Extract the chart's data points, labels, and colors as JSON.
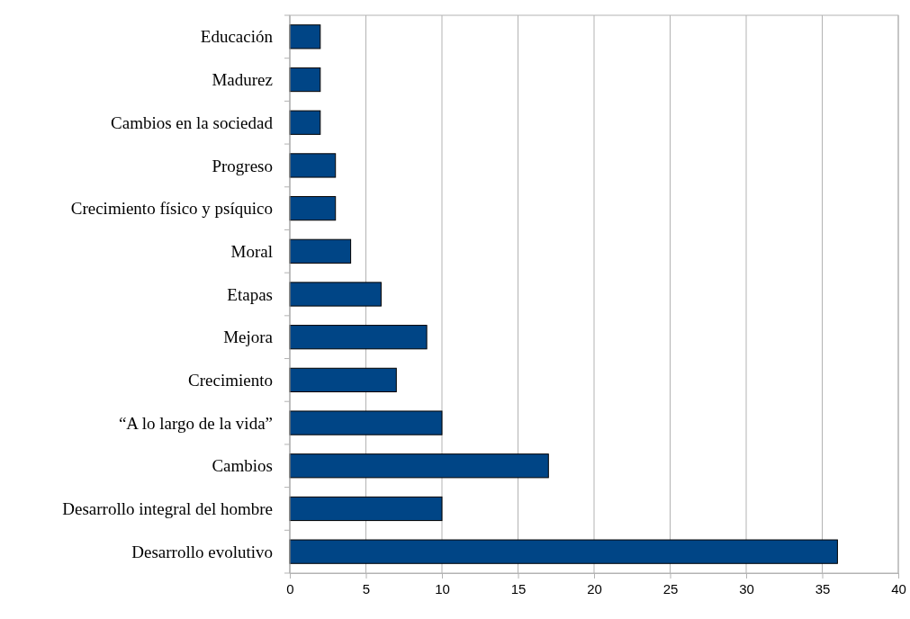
{
  "chart_data": {
    "type": "bar",
    "orientation": "horizontal",
    "categories": [
      "Educación",
      "Madurez",
      "Cambios en la sociedad",
      "Progreso",
      "Crecimiento físico y psíquico",
      "Moral",
      "Etapas",
      "Mejora",
      "Crecimiento",
      "“A lo largo de la vida”",
      "Cambios",
      "Desarrollo integral del hombre",
      "Desarrollo evolutivo"
    ],
    "values": [
      2,
      2,
      2,
      3,
      3,
      4,
      6,
      9,
      7,
      10,
      17,
      10,
      36
    ],
    "color": "#004586",
    "xlim": [
      0,
      40
    ],
    "xticks": [
      0,
      5,
      10,
      15,
      20,
      25,
      30,
      35,
      40
    ],
    "grid": "x"
  }
}
